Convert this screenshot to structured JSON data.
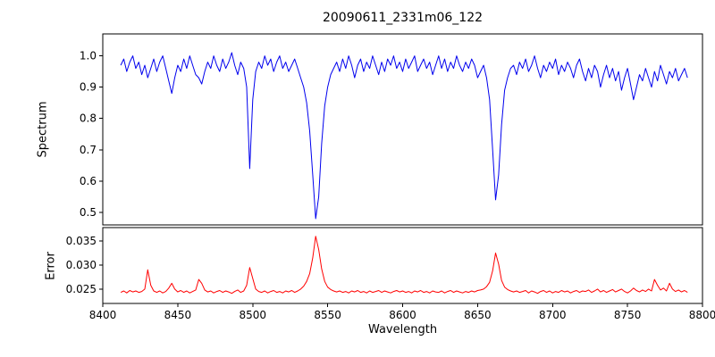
{
  "figure": {
    "background": "#ffffff"
  },
  "chart_data": [
    {
      "type": "line",
      "name": "spectrum",
      "title": "20090611_2331m06_122",
      "ylabel": "Spectrum",
      "color": "#0000ee",
      "grid": false,
      "legend": null,
      "xlim": [
        8400,
        8800
      ],
      "ylim": [
        0.46,
        1.07
      ],
      "ytick_values": [
        0.5,
        0.6,
        0.7,
        0.8,
        0.9,
        1.0
      ],
      "ytick_labels": [
        "0.5",
        "0.6",
        "0.7",
        "0.8",
        "0.9",
        "1.0"
      ],
      "x_start": 8412,
      "x_step": 2,
      "y": [
        0.97,
        0.99,
        0.95,
        0.98,
        1.0,
        0.96,
        0.98,
        0.94,
        0.97,
        0.93,
        0.96,
        0.99,
        0.95,
        0.98,
        1.0,
        0.96,
        0.92,
        0.88,
        0.93,
        0.97,
        0.95,
        0.99,
        0.96,
        1.0,
        0.97,
        0.94,
        0.93,
        0.91,
        0.95,
        0.98,
        0.96,
        1.0,
        0.97,
        0.95,
        0.99,
        0.96,
        0.98,
        1.01,
        0.97,
        0.94,
        0.98,
        0.96,
        0.9,
        0.64,
        0.86,
        0.95,
        0.98,
        0.96,
        1.0,
        0.97,
        0.99,
        0.95,
        0.98,
        1.0,
        0.96,
        0.98,
        0.95,
        0.97,
        0.99,
        0.96,
        0.93,
        0.9,
        0.85,
        0.76,
        0.62,
        0.48,
        0.55,
        0.72,
        0.84,
        0.9,
        0.94,
        0.96,
        0.98,
        0.95,
        0.99,
        0.96,
        1.0,
        0.97,
        0.93,
        0.97,
        0.99,
        0.95,
        0.98,
        0.96,
        1.0,
        0.97,
        0.94,
        0.98,
        0.95,
        0.99,
        0.97,
        1.0,
        0.96,
        0.98,
        0.95,
        0.99,
        0.96,
        0.98,
        1.0,
        0.95,
        0.97,
        0.99,
        0.96,
        0.98,
        0.94,
        0.97,
        1.0,
        0.96,
        0.99,
        0.95,
        0.98,
        0.96,
        1.0,
        0.97,
        0.95,
        0.98,
        0.96,
        0.99,
        0.97,
        0.93,
        0.95,
        0.97,
        0.93,
        0.86,
        0.7,
        0.54,
        0.62,
        0.78,
        0.89,
        0.93,
        0.96,
        0.97,
        0.94,
        0.98,
        0.96,
        0.99,
        0.95,
        0.97,
        1.0,
        0.96,
        0.93,
        0.97,
        0.95,
        0.98,
        0.96,
        0.99,
        0.94,
        0.97,
        0.95,
        0.98,
        0.96,
        0.93,
        0.97,
        0.99,
        0.95,
        0.92,
        0.96,
        0.93,
        0.97,
        0.95,
        0.9,
        0.94,
        0.97,
        0.93,
        0.96,
        0.92,
        0.95,
        0.89,
        0.93,
        0.96,
        0.91,
        0.86,
        0.9,
        0.94,
        0.92,
        0.96,
        0.93,
        0.9,
        0.95,
        0.92,
        0.97,
        0.94,
        0.91,
        0.95,
        0.93,
        0.96,
        0.92,
        0.94,
        0.96,
        0.93
      ]
    },
    {
      "type": "line",
      "name": "error",
      "ylabel": "Error",
      "xlabel": "Wavelength",
      "color": "#ff0000",
      "grid": false,
      "legend": null,
      "xlim": [
        8400,
        8800
      ],
      "ylim": [
        0.022,
        0.0378
      ],
      "ytick_values": [
        0.025,
        0.03,
        0.035
      ],
      "ytick_labels": [
        "0.025",
        "0.030",
        "0.035"
      ],
      "xtick_values": [
        8400,
        8450,
        8500,
        8550,
        8600,
        8650,
        8700,
        8750,
        8800
      ],
      "xtick_labels": [
        "8400",
        "8450",
        "8500",
        "8550",
        "8600",
        "8650",
        "8700",
        "8750",
        "8800"
      ],
      "x_start": 8412,
      "x_step": 2,
      "y": [
        0.0243,
        0.0246,
        0.0242,
        0.0247,
        0.0244,
        0.0246,
        0.0243,
        0.0245,
        0.025,
        0.029,
        0.0258,
        0.0246,
        0.0243,
        0.0246,
        0.0242,
        0.0245,
        0.0252,
        0.0262,
        0.025,
        0.0244,
        0.0247,
        0.0243,
        0.0246,
        0.0242,
        0.0245,
        0.0248,
        0.027,
        0.0262,
        0.0248,
        0.0244,
        0.0246,
        0.0242,
        0.0245,
        0.0247,
        0.0243,
        0.0246,
        0.0244,
        0.0241,
        0.0245,
        0.0248,
        0.0243,
        0.0246,
        0.0258,
        0.0295,
        0.0272,
        0.025,
        0.0245,
        0.0243,
        0.0246,
        0.0242,
        0.0245,
        0.0247,
        0.0243,
        0.0245,
        0.0242,
        0.0246,
        0.0244,
        0.0247,
        0.0243,
        0.0246,
        0.025,
        0.0256,
        0.0266,
        0.0282,
        0.0315,
        0.036,
        0.0332,
        0.0292,
        0.0266,
        0.0254,
        0.0249,
        0.0246,
        0.0244,
        0.0246,
        0.0243,
        0.0245,
        0.0242,
        0.0246,
        0.0244,
        0.0247,
        0.0243,
        0.0245,
        0.0242,
        0.0246,
        0.0243,
        0.0245,
        0.0247,
        0.0243,
        0.0246,
        0.0244,
        0.0242,
        0.0245,
        0.0247,
        0.0244,
        0.0246,
        0.0243,
        0.0245,
        0.0242,
        0.0246,
        0.0244,
        0.0247,
        0.0243,
        0.0245,
        0.0242,
        0.0246,
        0.0244,
        0.0243,
        0.0246,
        0.0242,
        0.0245,
        0.0247,
        0.0243,
        0.0246,
        0.0244,
        0.0242,
        0.0245,
        0.0243,
        0.0246,
        0.0244,
        0.0247,
        0.0248,
        0.025,
        0.0255,
        0.0264,
        0.0288,
        0.0325,
        0.0302,
        0.0268,
        0.0254,
        0.0249,
        0.0246,
        0.0244,
        0.0246,
        0.0243,
        0.0245,
        0.0247,
        0.0242,
        0.0246,
        0.0244,
        0.0241,
        0.0245,
        0.0247,
        0.0243,
        0.0246,
        0.0242,
        0.0245,
        0.0243,
        0.0247,
        0.0244,
        0.0246,
        0.0242,
        0.0245,
        0.0247,
        0.0243,
        0.0246,
        0.0245,
        0.0248,
        0.0243,
        0.0246,
        0.025,
        0.0244,
        0.0247,
        0.0243,
        0.0246,
        0.0249,
        0.0244,
        0.0247,
        0.025,
        0.0245,
        0.0242,
        0.0246,
        0.0252,
        0.0247,
        0.0244,
        0.0248,
        0.0245,
        0.025,
        0.0246,
        0.027,
        0.0258,
        0.0248,
        0.0252,
        0.0246,
        0.0262,
        0.025,
        0.0245,
        0.0248,
        0.0244,
        0.0247,
        0.0243
      ]
    }
  ]
}
